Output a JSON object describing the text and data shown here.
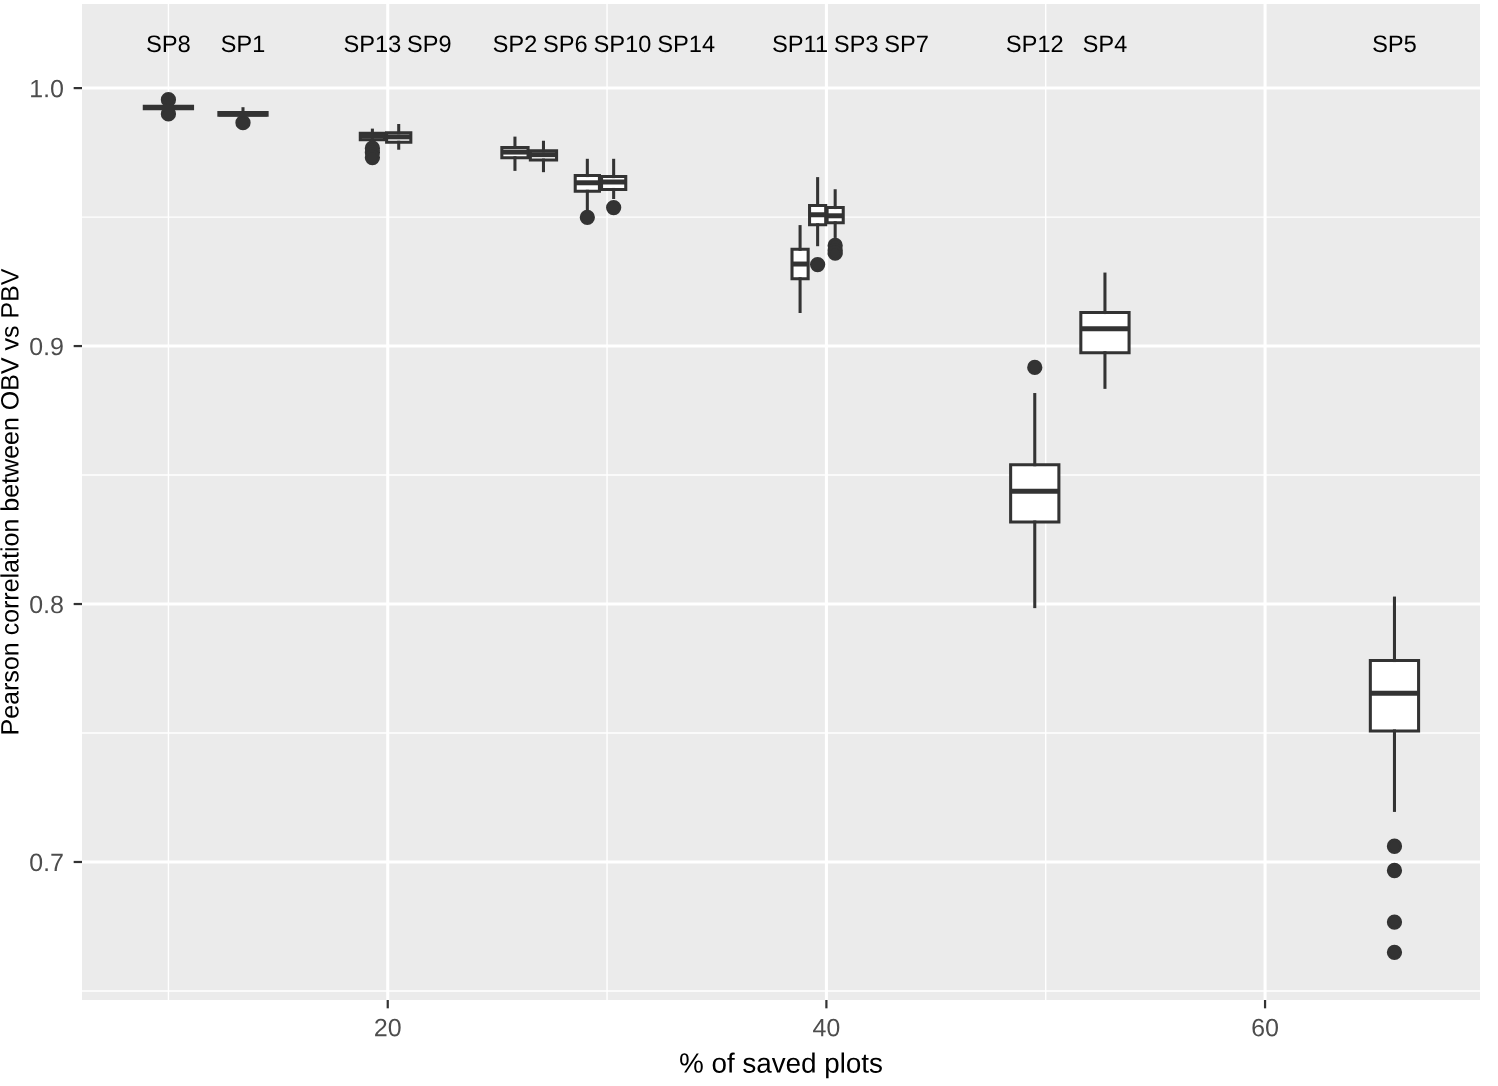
{
  "chart_data": {
    "type": "box",
    "xlabel": "% of saved plots",
    "ylabel": "Pearson correlation between OBV vs PBV",
    "x": [
      10.0,
      13.4,
      19.3,
      20.5,
      25.8,
      27.1,
      29.1,
      30.3,
      38.8,
      39.6,
      40.4,
      49.5,
      52.7,
      65.9
    ],
    "boxes": [
      {
        "low": 0.991,
        "q1": 0.992,
        "median": 0.9925,
        "q3": 0.993,
        "high": 0.994,
        "outliers": [
          0.9955,
          0.99
        ]
      },
      {
        "low": 0.9885,
        "q1": 0.9895,
        "median": 0.99,
        "q3": 0.9905,
        "high": 0.992,
        "outliers": [
          0.9866
        ]
      },
      {
        "low": 0.978,
        "q1": 0.98,
        "median": 0.9814,
        "q3": 0.9825,
        "high": 0.9837,
        "outliers": [
          0.9767,
          0.975,
          0.9731
        ]
      },
      {
        "low": 0.9767,
        "q1": 0.979,
        "median": 0.9811,
        "q3": 0.9827,
        "high": 0.9855
      },
      {
        "low": 0.9685,
        "q1": 0.973,
        "median": 0.9752,
        "q3": 0.977,
        "high": 0.9806
      },
      {
        "low": 0.968,
        "q1": 0.9721,
        "median": 0.9742,
        "q3": 0.9757,
        "high": 0.979
      },
      {
        "low": 0.9525,
        "q1": 0.96,
        "median": 0.9633,
        "q3": 0.9661,
        "high": 0.972,
        "outliers": [
          0.9499
        ]
      },
      {
        "low": 0.9576,
        "q1": 0.9607,
        "median": 0.9636,
        "q3": 0.9657,
        "high": 0.972,
        "outliers": [
          0.9537
        ]
      },
      {
        "low": 0.9134,
        "q1": 0.9261,
        "median": 0.9318,
        "q3": 0.9375,
        "high": 0.9463
      },
      {
        "low": 0.9393,
        "q1": 0.947,
        "median": 0.9509,
        "q3": 0.9545,
        "high": 0.9649,
        "outliers": [
          0.9316
        ]
      },
      {
        "low": 0.9425,
        "q1": 0.9478,
        "median": 0.9505,
        "q3": 0.9537,
        "high": 0.9602,
        "outliers": [
          0.939,
          0.937,
          0.936
        ]
      },
      {
        "low": 0.799,
        "q1": 0.8318,
        "median": 0.8437,
        "q3": 0.854,
        "high": 0.8812,
        "outliers": [
          0.8917
        ]
      },
      {
        "low": 0.884,
        "q1": 0.8974,
        "median": 0.9067,
        "q3": 0.913,
        "high": 0.9279
      },
      {
        "low": 0.72,
        "q1": 0.7508,
        "median": 0.7654,
        "q3": 0.7781,
        "high": 0.8023,
        "outliers": [
          0.7061,
          0.6967,
          0.6767,
          0.665
        ]
      }
    ],
    "annotations": [
      "SP8",
      "SP1",
      "SP13",
      "SP9",
      "SP2",
      "SP6",
      "SP10",
      "SP14",
      "SP11",
      "SP3",
      "SP7",
      "SP12",
      "SP4",
      "SP5"
    ],
    "xlim": [
      6.06,
      69.8
    ],
    "ylim": [
      0.6465,
      1.0326
    ],
    "xticks": [
      20,
      40,
      60
    ],
    "yticks": [
      {
        "value": 0.7,
        "label": "0.7"
      },
      {
        "value": 0.8,
        "label": "0.8"
      },
      {
        "value": 0.9,
        "label": "0.9"
      },
      {
        "value": 1.0,
        "label": "1.0"
      }
    ],
    "grid": true,
    "color": "#333333"
  }
}
